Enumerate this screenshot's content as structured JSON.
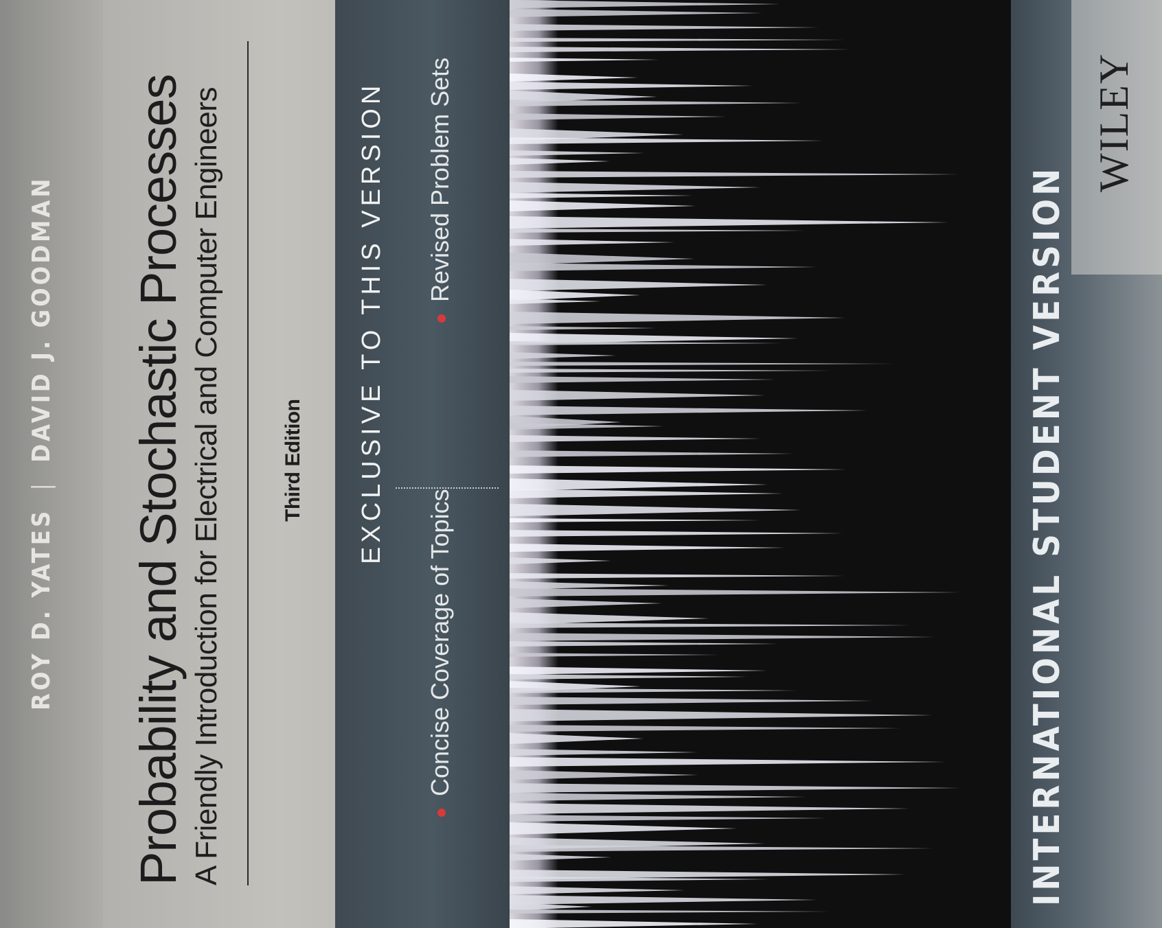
{
  "cover": {
    "authors": [
      "ROY D. YATES",
      "DAVID J. GOODMAN"
    ],
    "author_separator": "|",
    "title": "Probability and Stochastic Processes",
    "subtitle": "A Friendly Introduction for Electrical and Computer Engineers",
    "edition": "Third Edition",
    "exclusive_heading": "EXCLUSIVE TO THIS VERSION",
    "features": [
      "Concise Coverage of Topics",
      "Revised Problem Sets"
    ],
    "banner": "INTERNATIONAL STUDENT VERSION",
    "publisher": "WILEY"
  },
  "colors": {
    "title_band": "#c1bfba",
    "exclusive_band": "#47545e",
    "photo_background": "#0f0f10",
    "bullet": "#d83a3a",
    "banner_text": "#e9edef"
  }
}
